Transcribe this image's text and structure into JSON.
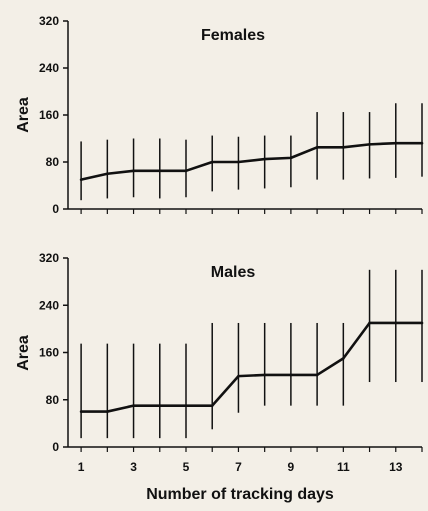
{
  "chart_data": [
    {
      "type": "line",
      "title": "Females",
      "ylabel": "Area",
      "xlabel": "",
      "ylim": [
        0,
        320
      ],
      "yticks": [
        0,
        80,
        160,
        240,
        320
      ],
      "xlim": [
        0.5,
        14
      ],
      "xticks": [
        1,
        3,
        5,
        7,
        9,
        11,
        13
      ],
      "x": [
        1,
        2,
        3,
        4,
        5,
        6,
        7,
        8,
        9,
        10,
        11,
        12,
        13,
        14
      ],
      "series": [
        {
          "values": [
            50,
            60,
            65,
            65,
            65,
            80,
            80,
            85,
            87,
            105,
            105,
            110,
            112,
            112
          ],
          "error_low": [
            15,
            18,
            20,
            18,
            20,
            30,
            33,
            35,
            37,
            50,
            50,
            52,
            53,
            55
          ],
          "error_high": [
            115,
            118,
            120,
            120,
            118,
            125,
            123,
            125,
            125,
            165,
            165,
            165,
            180,
            180
          ]
        }
      ],
      "grid": false,
      "color": "#111111"
    },
    {
      "type": "line",
      "title": "Males",
      "ylabel": "Area",
      "xlabel": "Number of tracking days",
      "ylim": [
        0,
        320
      ],
      "yticks": [
        0,
        80,
        160,
        240,
        320
      ],
      "xlim": [
        0.5,
        14
      ],
      "xticks": [
        1,
        3,
        5,
        7,
        9,
        11,
        13
      ],
      "x": [
        1,
        2,
        3,
        4,
        5,
        6,
        7,
        8,
        9,
        10,
        11,
        12,
        13,
        14
      ],
      "series": [
        {
          "values": [
            60,
            60,
            70,
            70,
            70,
            70,
            120,
            122,
            122,
            122,
            150,
            210,
            210,
            210
          ],
          "error_low": [
            15,
            15,
            15,
            15,
            15,
            30,
            58,
            70,
            70,
            70,
            70,
            110,
            110,
            110
          ],
          "error_high": [
            175,
            175,
            175,
            175,
            175,
            210,
            210,
            210,
            210,
            210,
            210,
            300,
            300,
            300
          ]
        }
      ],
      "grid": false,
      "color": "#111111"
    }
  ]
}
